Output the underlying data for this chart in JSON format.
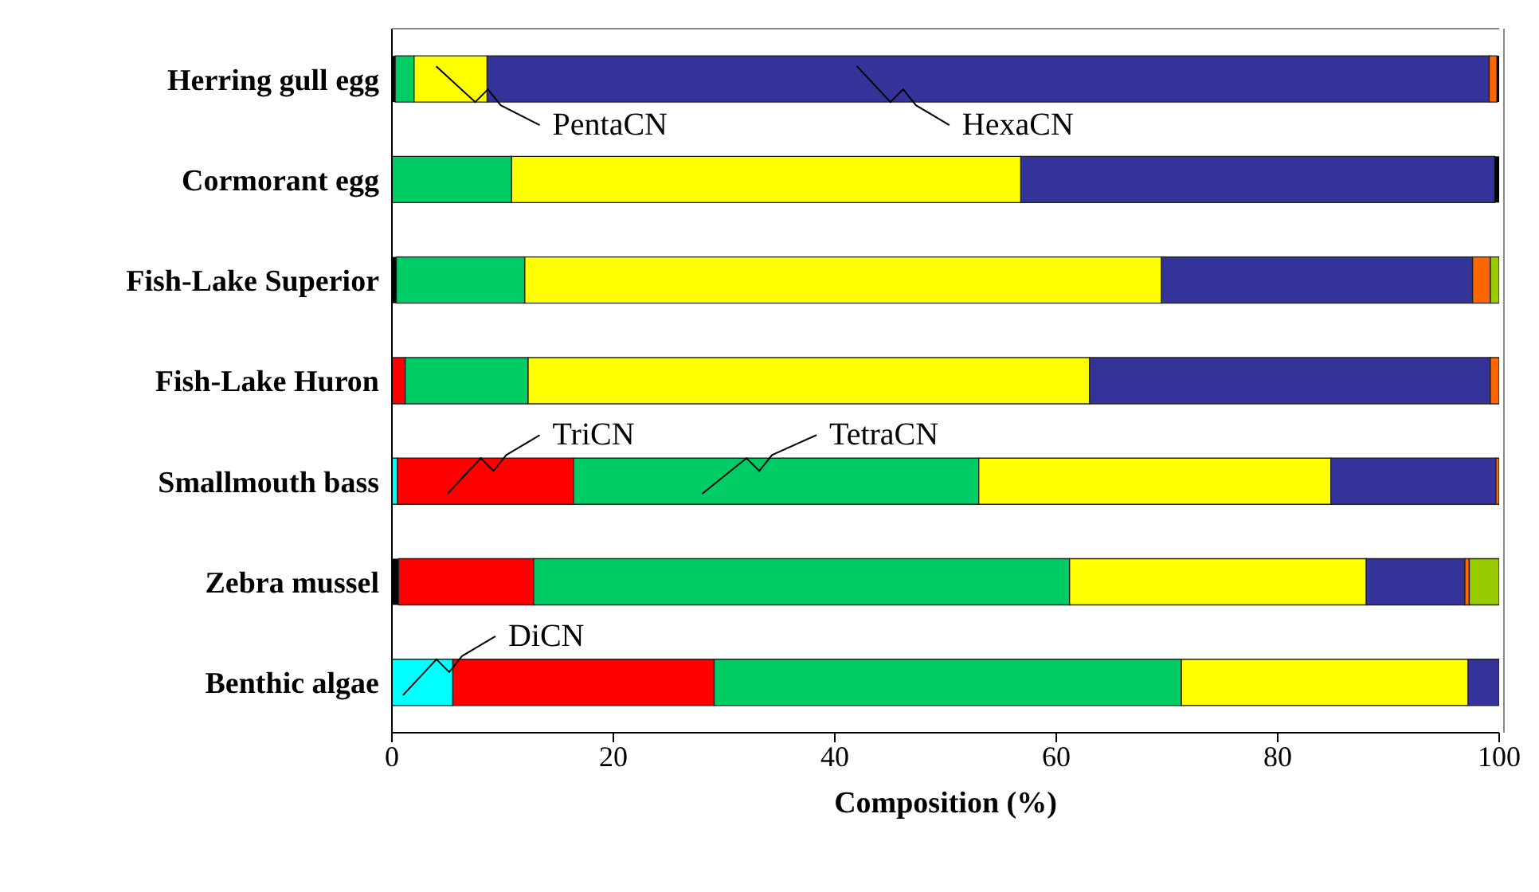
{
  "chart_data": {
    "type": "bar",
    "orientation": "horizontal",
    "stacked": true,
    "categories": [
      "Herring gull egg",
      "Cormorant egg",
      "Fish-Lake Superior",
      "Fish-Lake Huron",
      "Smallmouth bass",
      "Zebra mussel",
      "Benthic algae"
    ],
    "series": [
      {
        "color": "#000000",
        "values": [
          0.3,
          null,
          0.4,
          null,
          null,
          0.6,
          null
        ]
      },
      {
        "name": "DiCN",
        "color": "#00ffff",
        "values": [
          0,
          0,
          0,
          0,
          0.5,
          0,
          5.5
        ]
      },
      {
        "name": "TriCN",
        "color": "#ff0000",
        "values": [
          0,
          0,
          0,
          1.2,
          15.9,
          12.2,
          23.6
        ]
      },
      {
        "name": "TetraCN",
        "color": "#00cc66",
        "values": [
          1.7,
          10.8,
          11.6,
          11.1,
          36.6,
          48.4,
          42.2
        ]
      },
      {
        "name": "PentaCN",
        "color": "#ffff00",
        "values": [
          6.6,
          46.0,
          57.5,
          50.7,
          31.8,
          26.8,
          25.9
        ]
      },
      {
        "name": "HexaCN",
        "color": "#333399",
        "values": [
          90.5,
          42.8,
          28.1,
          36.2,
          14.9,
          8.9,
          2.8
        ]
      },
      {
        "color": "#ff6600",
        "values": [
          0.7,
          0,
          1.6,
          0.8,
          0.3,
          0.4,
          0
        ]
      },
      {
        "color": "#99cc00",
        "values": [
          0,
          0,
          0.8,
          0,
          0,
          2.7,
          0
        ]
      },
      {
        "color": "#000000",
        "values": [
          0.2,
          0.4,
          null,
          null,
          null,
          null,
          null
        ]
      }
    ],
    "xlim": [
      0,
      100
    ],
    "xticks": [
      0,
      20,
      40,
      60,
      80,
      100
    ],
    "xlabel": "Composition (%)"
  }
}
